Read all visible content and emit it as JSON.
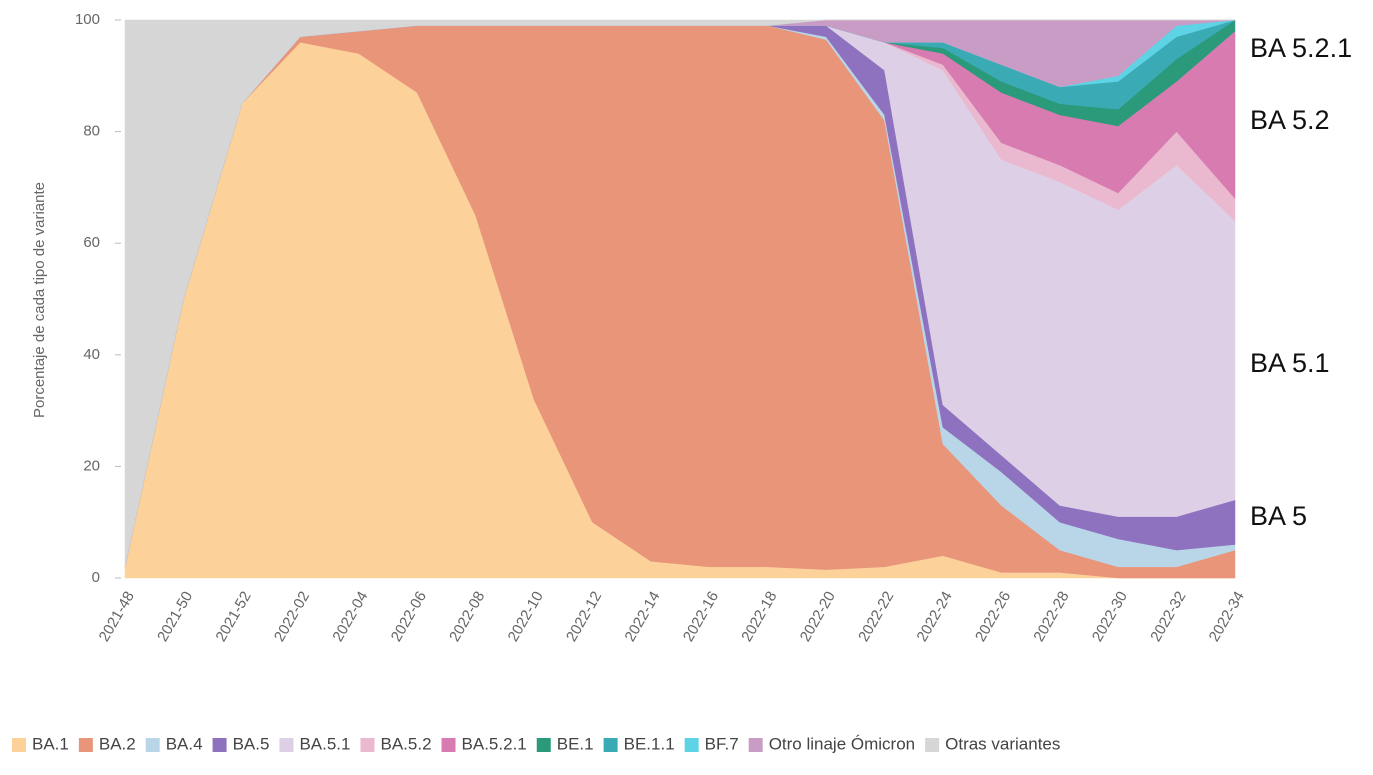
{
  "chart_data": {
    "type": "stacked_area",
    "y_label": "Porcentaje de cada tipo de variante",
    "categories": [
      "2021-48",
      "2021-50",
      "2021-52",
      "2022-02",
      "2022-04",
      "2022-06",
      "2022-08",
      "2022-10",
      "2022-12",
      "2022-14",
      "2022-16",
      "2022-18",
      "2022-20",
      "2022-22",
      "2022-24",
      "2022-26",
      "2022-28",
      "2022-30",
      "2022-32",
      "2022-34"
    ],
    "ylim": [
      0,
      100
    ],
    "yticks": [
      0,
      20,
      40,
      60,
      80,
      100
    ],
    "series": [
      {
        "name": "BA.1",
        "color": "#fdd29a",
        "values": [
          2,
          50,
          85,
          96,
          94,
          87,
          65,
          32,
          10,
          3,
          2,
          2,
          1.5,
          2,
          4,
          1,
          1,
          0,
          0,
          0
        ]
      },
      {
        "name": "BA.2",
        "color": "#e8957a",
        "values": [
          0,
          0,
          0,
          1,
          4,
          12,
          34,
          67,
          89,
          96,
          97,
          97,
          95,
          80,
          20,
          12,
          4,
          2,
          2,
          5
        ]
      },
      {
        "name": "BA.4",
        "color": "#b9d6e8",
        "values": [
          0,
          0,
          0,
          0,
          0,
          0,
          0,
          0,
          0,
          0,
          0,
          0,
          0.5,
          1,
          3,
          6,
          5,
          5,
          3,
          1
        ]
      },
      {
        "name": "BA.5",
        "color": "#8e72c0",
        "values": [
          0,
          0,
          0,
          0,
          0,
          0,
          0,
          0,
          0,
          0,
          0,
          0,
          2,
          8,
          4,
          3,
          3,
          4,
          6,
          8
        ]
      },
      {
        "name": "BA.5.1",
        "color": "#ddd0e6",
        "values": [
          0,
          0,
          0,
          0,
          0,
          0,
          0,
          0,
          0,
          0,
          0,
          0,
          0,
          5,
          60,
          53,
          58,
          55,
          63,
          50
        ]
      },
      {
        "name": "BA.5.2",
        "color": "#eab8cf",
        "values": [
          0,
          0,
          0,
          0,
          0,
          0,
          0,
          0,
          0,
          0,
          0,
          0,
          0,
          0,
          1,
          3,
          3,
          3,
          6,
          4
        ]
      },
      {
        "name": "BA.5.2.1",
        "color": "#d77bb0",
        "values": [
          0,
          0,
          0,
          0,
          0,
          0,
          0,
          0,
          0,
          0,
          0,
          0,
          0,
          0,
          2,
          9,
          9,
          12,
          9,
          30
        ]
      },
      {
        "name": "BE.1",
        "color": "#2a9a7a",
        "values": [
          0,
          0,
          0,
          0,
          0,
          0,
          0,
          0,
          0,
          0,
          0,
          0,
          0,
          0,
          1,
          2,
          2,
          3,
          4,
          2
        ]
      },
      {
        "name": "BE.1.1",
        "color": "#3aabb5",
        "values": [
          0,
          0,
          0,
          0,
          0,
          0,
          0,
          0,
          0,
          0,
          0,
          0,
          0,
          0,
          1,
          3,
          3,
          5,
          4,
          0
        ]
      },
      {
        "name": "BF.7",
        "color": "#5fd3e6",
        "values": [
          0,
          0,
          0,
          0,
          0,
          0,
          0,
          0,
          0,
          0,
          0,
          0,
          0,
          0,
          0,
          0,
          0,
          1,
          2,
          0
        ]
      },
      {
        "name": "Otro linaje Ómicron",
        "color": "#c89cc4",
        "values": [
          0,
          0,
          0,
          0,
          0,
          0,
          0,
          0,
          0,
          0,
          0,
          0,
          1,
          4,
          4,
          8,
          12,
          10,
          1,
          0
        ]
      },
      {
        "name": "Otras variantes",
        "color": "#d6d6d6",
        "values": [
          98,
          50,
          15,
          3,
          2,
          1,
          1,
          1,
          1,
          1,
          1,
          1,
          0,
          0,
          0,
          0,
          0,
          0,
          0,
          0
        ]
      }
    ],
    "annotations": [
      "BA 5.2.1",
      "BA 5.2",
      "BA 5.1",
      "BA 5"
    ]
  }
}
